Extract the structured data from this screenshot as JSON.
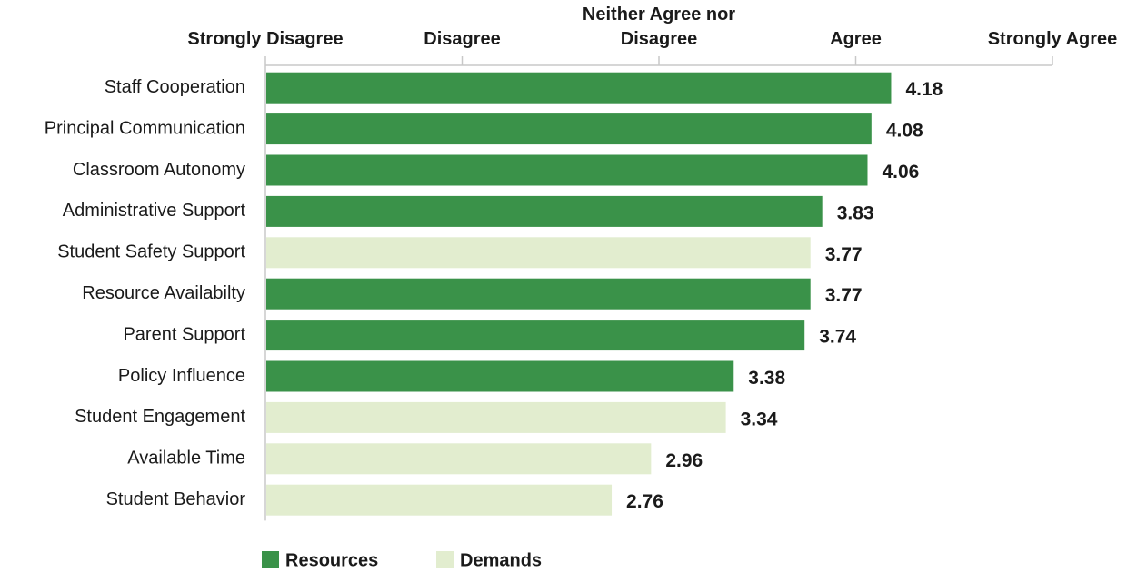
{
  "chart_data": {
    "type": "bar",
    "orientation": "horizontal",
    "categories": [
      "Staff Cooperation",
      "Principal Communication",
      "Classroom Autonomy",
      "Administrative Support",
      "Student Safety Support",
      "Resource Availabilty",
      "Parent Support",
      "Policy Influence",
      "Student Engagement",
      "Available Time",
      "Student Behavior"
    ],
    "series": [
      {
        "name": "Resources",
        "color": "#3a9249",
        "values": [
          4.18,
          4.08,
          4.06,
          3.83,
          null,
          3.77,
          3.74,
          3.38,
          null,
          null,
          null
        ]
      },
      {
        "name": "Demands",
        "color": "#e2edcf",
        "values": [
          null,
          null,
          null,
          null,
          3.77,
          null,
          null,
          null,
          3.34,
          2.96,
          2.76
        ]
      }
    ],
    "xlim": [
      1,
      5
    ],
    "xticks": [
      {
        "value": 1,
        "label": "Strongly Disagree"
      },
      {
        "value": 2,
        "label": "Disagree"
      },
      {
        "value": 3,
        "label": "Neither Agree nor Disagree"
      },
      {
        "value": 4,
        "label": "Agree"
      },
      {
        "value": 5,
        "label": "Strongly Agree"
      }
    ],
    "legend": "bottom"
  }
}
